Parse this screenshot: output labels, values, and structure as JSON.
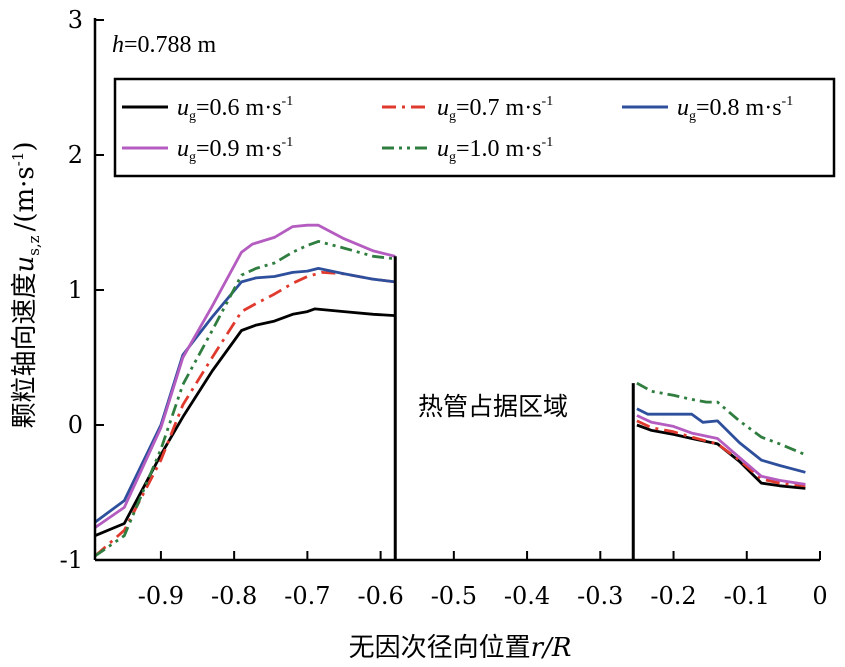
{
  "chart_data": {
    "type": "line",
    "annotation": {
      "var": "h",
      "text": "=0.788 m"
    },
    "xlabel": {
      "main": "无因次径向位置",
      "var": "r/R"
    },
    "ylabel": {
      "main": "颗粒轴向速度",
      "var": "u",
      "sub": "s,z",
      "unit": "/(m·s",
      "unit_sup": "-1",
      "unit_close": ")"
    },
    "xlim": [
      -0.99,
      0
    ],
    "ylim": [
      -1,
      3
    ],
    "x_ticks": [
      -0.9,
      -0.8,
      -0.7,
      -0.6,
      -0.5,
      -0.4,
      -0.3,
      -0.2,
      -0.1,
      0
    ],
    "x_tick_labels": [
      "-0.9",
      "-0.8",
      "-0.7",
      "-0.6",
      "-0.5",
      "-0.4",
      "-0.3",
      "-0.2",
      "-0.1",
      "0"
    ],
    "y_ticks": [
      -1,
      0,
      1,
      2,
      3
    ],
    "y_tick_labels": [
      "-1",
      "0",
      "1",
      "2",
      "3"
    ],
    "grid": false,
    "legend_position": "top",
    "region": {
      "label": "热管占据区域",
      "x_start": -0.58,
      "x_end": -0.255
    },
    "series": [
      {
        "name": "u_g=0.6 m·s-1",
        "legend": {
          "var": "u",
          "sub": "g",
          "value": "=0.6 m·s",
          "sup": "-1"
        },
        "color": "#000000",
        "dash": "solid",
        "left": [
          [
            -0.99,
            -0.82
          ],
          [
            -0.95,
            -0.73
          ],
          [
            -0.9,
            -0.22
          ],
          [
            -0.87,
            0.06
          ],
          [
            -0.83,
            0.4
          ],
          [
            -0.79,
            0.7
          ],
          [
            -0.77,
            0.74
          ],
          [
            -0.745,
            0.77
          ],
          [
            -0.72,
            0.82
          ],
          [
            -0.7,
            0.84
          ],
          [
            -0.69,
            0.86
          ],
          [
            -0.65,
            0.84
          ],
          [
            -0.61,
            0.82
          ],
          [
            -0.58,
            0.81
          ]
        ],
        "right": [
          [
            -0.25,
            0.0
          ],
          [
            -0.23,
            -0.04
          ],
          [
            -0.2,
            -0.07
          ],
          [
            -0.175,
            -0.1
          ],
          [
            -0.14,
            -0.14
          ],
          [
            -0.11,
            -0.27
          ],
          [
            -0.08,
            -0.43
          ],
          [
            -0.055,
            -0.45
          ],
          [
            -0.02,
            -0.47
          ]
        ]
      },
      {
        "name": "u_g=0.7 m·s-1",
        "legend": {
          "var": "u",
          "sub": "g",
          "value": "=0.7 m·s",
          "sup": "-1"
        },
        "color": "#e03a2e",
        "dash": "dashdot",
        "left": [
          [
            -0.99,
            -0.97
          ],
          [
            -0.95,
            -0.78
          ],
          [
            -0.9,
            -0.26
          ],
          [
            -0.87,
            0.15
          ],
          [
            -0.83,
            0.5
          ],
          [
            -0.79,
            0.84
          ],
          [
            -0.77,
            0.9
          ],
          [
            -0.745,
            0.97
          ],
          [
            -0.72,
            1.05
          ],
          [
            -0.7,
            1.1
          ],
          [
            -0.68,
            1.13
          ],
          [
            -0.65,
            1.12
          ],
          [
            -0.61,
            1.08
          ],
          [
            -0.58,
            1.06
          ]
        ],
        "right": [
          [
            -0.25,
            0.03
          ],
          [
            -0.23,
            -0.02
          ],
          [
            -0.2,
            -0.05
          ],
          [
            -0.175,
            -0.09
          ],
          [
            -0.14,
            -0.14
          ],
          [
            -0.11,
            -0.26
          ],
          [
            -0.08,
            -0.4
          ],
          [
            -0.055,
            -0.43
          ],
          [
            -0.02,
            -0.45
          ]
        ]
      },
      {
        "name": "u_g=0.8 m·s-1",
        "legend": {
          "var": "u",
          "sub": "g",
          "value": "=0.8 m·s",
          "sup": "-1"
        },
        "color": "#2e4f9c",
        "dash": "solid",
        "left": [
          [
            -0.99,
            -0.72
          ],
          [
            -0.95,
            -0.56
          ],
          [
            -0.9,
            0.0
          ],
          [
            -0.87,
            0.52
          ],
          [
            -0.83,
            0.8
          ],
          [
            -0.79,
            1.06
          ],
          [
            -0.77,
            1.09
          ],
          [
            -0.745,
            1.1
          ],
          [
            -0.72,
            1.13
          ],
          [
            -0.7,
            1.14
          ],
          [
            -0.685,
            1.16
          ],
          [
            -0.65,
            1.12
          ],
          [
            -0.61,
            1.08
          ],
          [
            -0.58,
            1.06
          ]
        ],
        "right": [
          [
            -0.25,
            0.12
          ],
          [
            -0.235,
            0.08
          ],
          [
            -0.2,
            0.08
          ],
          [
            -0.175,
            0.08
          ],
          [
            -0.16,
            0.02
          ],
          [
            -0.14,
            0.03
          ],
          [
            -0.11,
            -0.13
          ],
          [
            -0.08,
            -0.26
          ],
          [
            -0.055,
            -0.3
          ],
          [
            -0.02,
            -0.35
          ]
        ]
      },
      {
        "name": "u_g=0.9 m·s-1",
        "legend": {
          "var": "u",
          "sub": "g",
          "value": "=0.9 m·s",
          "sup": "-1"
        },
        "color": "#b45cc0",
        "dash": "solid",
        "left": [
          [
            -0.99,
            -0.76
          ],
          [
            -0.95,
            -0.61
          ],
          [
            -0.9,
            -0.02
          ],
          [
            -0.87,
            0.5
          ],
          [
            -0.83,
            0.88
          ],
          [
            -0.79,
            1.28
          ],
          [
            -0.775,
            1.34
          ],
          [
            -0.745,
            1.39
          ],
          [
            -0.72,
            1.47
          ],
          [
            -0.7,
            1.48
          ],
          [
            -0.685,
            1.48
          ],
          [
            -0.65,
            1.38
          ],
          [
            -0.61,
            1.29
          ],
          [
            -0.58,
            1.25
          ]
        ],
        "right": [
          [
            -0.25,
            0.07
          ],
          [
            -0.23,
            0.02
          ],
          [
            -0.2,
            -0.01
          ],
          [
            -0.175,
            -0.06
          ],
          [
            -0.14,
            -0.1
          ],
          [
            -0.11,
            -0.24
          ],
          [
            -0.08,
            -0.38
          ],
          [
            -0.055,
            -0.41
          ],
          [
            -0.02,
            -0.44
          ]
        ]
      },
      {
        "name": "u_g=1.0 m·s-1",
        "legend": {
          "var": "u",
          "sub": "g",
          "value": "=1.0 m·s",
          "sup": "-1"
        },
        "color": "#2f7d3f",
        "dash": "dashdotdot",
        "left": [
          [
            -0.99,
            -0.97
          ],
          [
            -0.95,
            -0.82
          ],
          [
            -0.9,
            -0.18
          ],
          [
            -0.87,
            0.3
          ],
          [
            -0.83,
            0.7
          ],
          [
            -0.79,
            1.11
          ],
          [
            -0.77,
            1.16
          ],
          [
            -0.745,
            1.2
          ],
          [
            -0.72,
            1.28
          ],
          [
            -0.7,
            1.33
          ],
          [
            -0.685,
            1.36
          ],
          [
            -0.65,
            1.31
          ],
          [
            -0.61,
            1.25
          ],
          [
            -0.58,
            1.23
          ]
        ],
        "right": [
          [
            -0.25,
            0.31
          ],
          [
            -0.23,
            0.25
          ],
          [
            -0.2,
            0.22
          ],
          [
            -0.175,
            0.19
          ],
          [
            -0.155,
            0.17
          ],
          [
            -0.14,
            0.17
          ],
          [
            -0.11,
            0.03
          ],
          [
            -0.08,
            -0.09
          ],
          [
            -0.055,
            -0.14
          ],
          [
            -0.02,
            -0.22
          ]
        ]
      }
    ]
  }
}
